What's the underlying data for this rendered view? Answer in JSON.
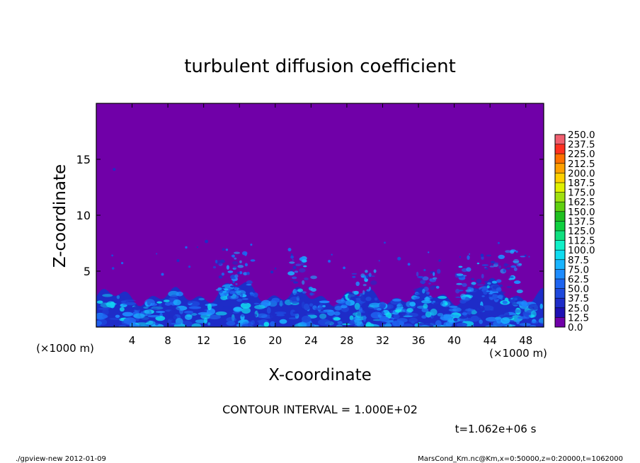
{
  "chart_data": {
    "type": "heatmap",
    "title": "turbulent diffusion coefficient",
    "xlabel": "X-coordinate",
    "ylabel": "Z-coordinate",
    "x_unit_left": "(×1000 m)",
    "x_unit_right": "(×1000 m)",
    "x_ticks": [
      4,
      8,
      12,
      16,
      20,
      24,
      28,
      32,
      36,
      40,
      44,
      48
    ],
    "y_ticks": [
      5,
      10,
      15
    ],
    "xlim": [
      0,
      50
    ],
    "ylim": [
      0,
      20
    ],
    "colorbar": {
      "levels": [
        "0.0",
        "12.5",
        "25.0",
        "37.5",
        "50.0",
        "62.5",
        "75.0",
        "87.5",
        "100.0",
        "112.5",
        "125.0",
        "137.5",
        "150.0",
        "162.5",
        "175.0",
        "187.5",
        "200.0",
        "212.5",
        "225.0",
        "237.5",
        "250.0"
      ],
      "colors": [
        "#7000a8",
        "#1e10b4",
        "#1e2cc8",
        "#1e48dc",
        "#1e64f0",
        "#1e8cff",
        "#19b4ff",
        "#10dcf0",
        "#10f0c8",
        "#10e080",
        "#10d040",
        "#20c020",
        "#60d010",
        "#a0e010",
        "#e0f000",
        "#ffd000",
        "#ffa000",
        "#ff7000",
        "#ff3020",
        "#f06070"
      ]
    },
    "contour_interval_text": "CONTOUR INTERVAL = 1.000E+02",
    "time_label": "t=1.062e+06 s"
  },
  "footer": {
    "left": "./gpview-new   2012-01-09",
    "right": "MarsCond_Km.nc@Km,x=0:50000,z=0:20000,t=1062000"
  }
}
